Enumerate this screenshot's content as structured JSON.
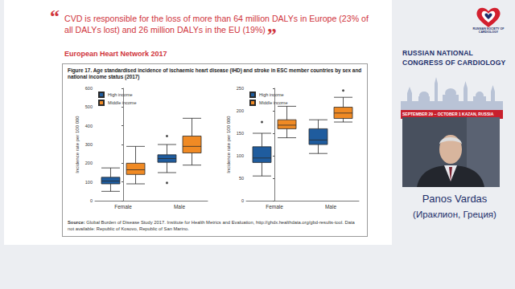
{
  "slide": {
    "quote_marks": [
      "“",
      "”"
    ],
    "quote": "CVD is responsible for the loss of more than 64 million DALYs in Europe (23% of all DALYs lost) and 26 million DALYs in the EU (19%)",
    "quote_source": "European Heart Network 2017",
    "figure_title": "Figure 17. Age standardised incidence of ischaemic heart disease (IHD) and stroke in ESC member countries by sex and national income status (2017)",
    "source_label": "Source:",
    "source": "Global Burden of Disease Study 2017. Institute for Health Metrics and Evaluation, http://ghdx.healthdata.org/gbd-results-tool. Data not available: Republic of Kosovo, Republic of San Marino."
  },
  "sidebar": {
    "logo_text": "RUSSIAN SOCIETY OF CARDIOLOGY",
    "congress": [
      "RUSSIAN NATIONAL",
      "CONGRESS OF CARDIOLOGY"
    ],
    "dates": "SEPTEMBER 29 – OCTOBER 1 KAZAN, RUSSIA",
    "speaker": "Panos Vardas",
    "speaker_place": "(Ираклион, Греция)"
  },
  "chart_data": [
    {
      "type": "boxplot",
      "y_label": "Incidence rate per 100 000",
      "categories": [
        "Female",
        "Male"
      ],
      "ylim": [
        0,
        600
      ],
      "yticks": [
        0,
        100,
        200,
        300,
        400,
        500,
        600
      ],
      "grid": false,
      "legend": "top-left",
      "series": [
        {
          "name": "High income",
          "color": "#1f5c9e",
          "boxes": [
            [
              50,
              90,
              105,
              125,
              175
            ],
            [
              150,
              205,
              225,
              245,
              300
            ]
          ],
          "outliers": [
            [],
            [
              95,
              345
            ]
          ]
        },
        {
          "name": "Middle income",
          "color": "#f08a24",
          "boxes": [
            [
              90,
              140,
              165,
              200,
              290
            ],
            [
              190,
              255,
              290,
              345,
              440
            ]
          ],
          "outliers": [
            [],
            []
          ]
        }
      ]
    },
    {
      "type": "boxplot",
      "y_label": "Incidence rate per 100 000",
      "categories": [
        "Female",
        "Male"
      ],
      "ylim": [
        0,
        250
      ],
      "yticks": [
        0,
        50,
        100,
        150,
        200,
        250
      ],
      "grid": false,
      "legend": "top-left",
      "series": [
        {
          "name": "High income",
          "color": "#1f5c9e",
          "boxes": [
            [
              55,
              85,
              95,
              120,
              150
            ],
            [
              105,
              125,
              135,
              160,
              180
            ]
          ],
          "outliers": [
            [
              175
            ],
            []
          ]
        },
        {
          "name": "Middle income",
          "color": "#f08a24",
          "boxes": [
            [
              140,
              160,
              168,
              180,
              210
            ],
            [
              175,
              183,
              195,
              208,
              230
            ]
          ],
          "outliers": [
            [],
            [
              245
            ]
          ]
        }
      ]
    }
  ]
}
